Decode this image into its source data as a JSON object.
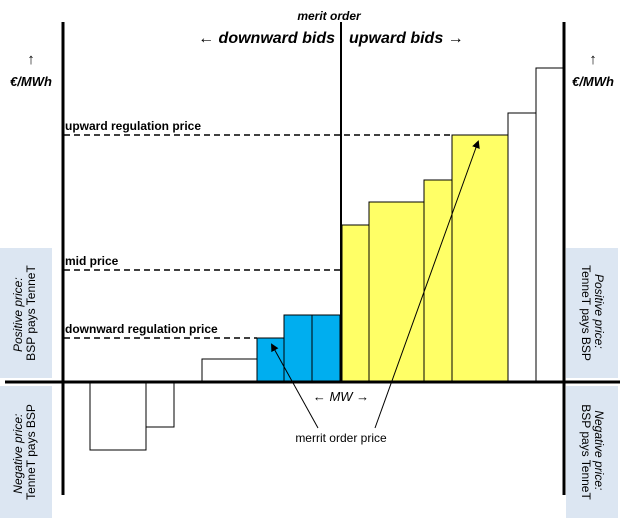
{
  "title": "merit order",
  "downward_bids_label": "← downward bids",
  "upward_bids_label": "upward bids →",
  "unit_left_arrow": "↑",
  "unit_left": "€/MWh",
  "unit_right_arrow": "↑",
  "unit_right": "€/MWh",
  "upward_regulation_price_label": "upward regulation price",
  "mid_price_label": "mid price",
  "downward_regulation_price_label": "downward regulation price",
  "mw_label": "← MW →",
  "merit_order_price_label": "merrit order price",
  "left_positive": {
    "line1": "Positive price:",
    "line2": "BSP pays TenneT"
  },
  "left_negative": {
    "line1": "Negative price:",
    "line2": "TenneT pays BSP"
  },
  "right_positive": {
    "line1": "Positive price:",
    "line2": "TenneT pays BSP"
  },
  "right_negative": {
    "line1": "Negative price:",
    "line2": "BSP pays TenneT"
  },
  "colors": {
    "upward_accepted": "#ffff66",
    "downward_accepted": "#00aeef",
    "side_panel": "#dce6f2",
    "bid_outline": "#000000"
  }
}
